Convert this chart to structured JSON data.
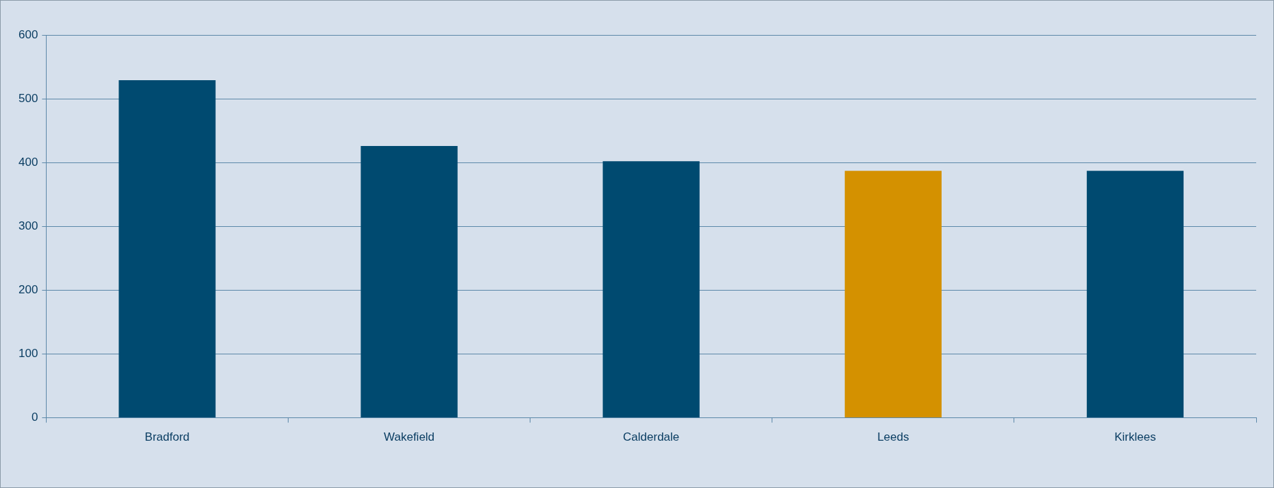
{
  "chart_data": {
    "type": "bar",
    "categories": [
      "Bradford",
      "Wakefield",
      "Calderdale",
      "Leeds",
      "Kirklees"
    ],
    "values": [
      529,
      426,
      402,
      387,
      387
    ],
    "colors": [
      "#004a70",
      "#004a70",
      "#004a70",
      "#d49100",
      "#004a70"
    ],
    "ylim": [
      0,
      600
    ],
    "yticks": [
      0,
      100,
      200,
      300,
      400,
      500,
      600
    ],
    "grid": "y",
    "legend": false
  }
}
